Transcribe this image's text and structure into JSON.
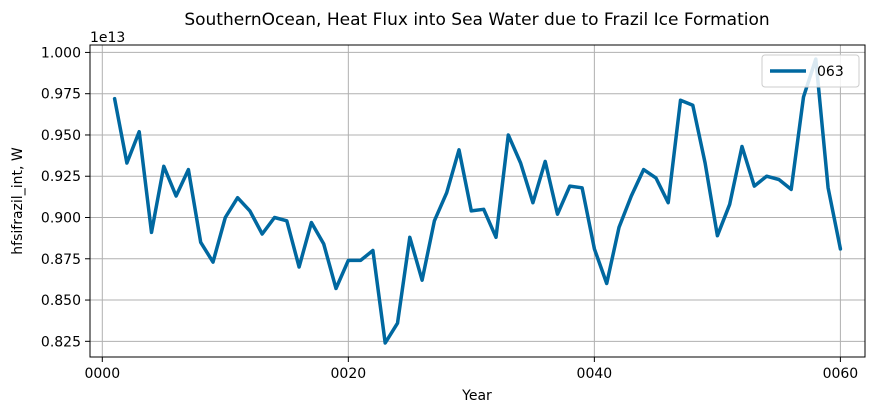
{
  "chart_data": {
    "type": "line",
    "title": "SouthernOcean, Heat Flux into Sea Water due to Frazil Ice Formation",
    "xlabel": "Year",
    "ylabel": "hfsifrazil_int, W",
    "y_offset_label": "1e13",
    "y_scale_factor": 10000000000000.0,
    "xlim": [
      -1,
      62
    ],
    "ylim": [
      0.8155,
      1.0045
    ],
    "x_ticks": [
      0,
      20,
      40,
      60
    ],
    "x_tick_labels": [
      "0000",
      "0020",
      "0040",
      "0060"
    ],
    "y_ticks": [
      0.825,
      0.85,
      0.875,
      0.9,
      0.925,
      0.95,
      0.975,
      1.0
    ],
    "y_tick_labels": [
      "0.825",
      "0.850",
      "0.875",
      "0.900",
      "0.925",
      "0.950",
      "0.975",
      "1.000"
    ],
    "grid": true,
    "legend_position": "top-right",
    "series": [
      {
        "name": "063",
        "color": "#0068a0",
        "x": [
          1,
          2,
          3,
          4,
          5,
          6,
          7,
          8,
          9,
          10,
          11,
          12,
          13,
          14,
          15,
          16,
          17,
          18,
          19,
          20,
          21,
          22,
          23,
          24,
          25,
          26,
          27,
          28,
          29,
          30,
          31,
          32,
          33,
          34,
          35,
          36,
          37,
          38,
          39,
          40,
          41,
          42,
          43,
          44,
          45,
          46,
          47,
          48,
          49,
          50,
          51,
          52,
          53,
          54,
          55,
          56,
          57,
          58,
          59,
          60
        ],
        "values": [
          0.972,
          0.933,
          0.952,
          0.891,
          0.931,
          0.913,
          0.929,
          0.885,
          0.873,
          0.9,
          0.912,
          0.904,
          0.89,
          0.9,
          0.898,
          0.87,
          0.897,
          0.884,
          0.857,
          0.874,
          0.874,
          0.88,
          0.824,
          0.836,
          0.888,
          0.862,
          0.898,
          0.915,
          0.941,
          0.904,
          0.905,
          0.888,
          0.95,
          0.933,
          0.909,
          0.934,
          0.902,
          0.919,
          0.918,
          0.881,
          0.86,
          0.894,
          0.913,
          0.929,
          0.924,
          0.909,
          0.971,
          0.968,
          0.933,
          0.889,
          0.908,
          0.943,
          0.919,
          0.925,
          0.923,
          0.917,
          0.973,
          0.996,
          0.918,
          0.881
        ]
      }
    ]
  }
}
